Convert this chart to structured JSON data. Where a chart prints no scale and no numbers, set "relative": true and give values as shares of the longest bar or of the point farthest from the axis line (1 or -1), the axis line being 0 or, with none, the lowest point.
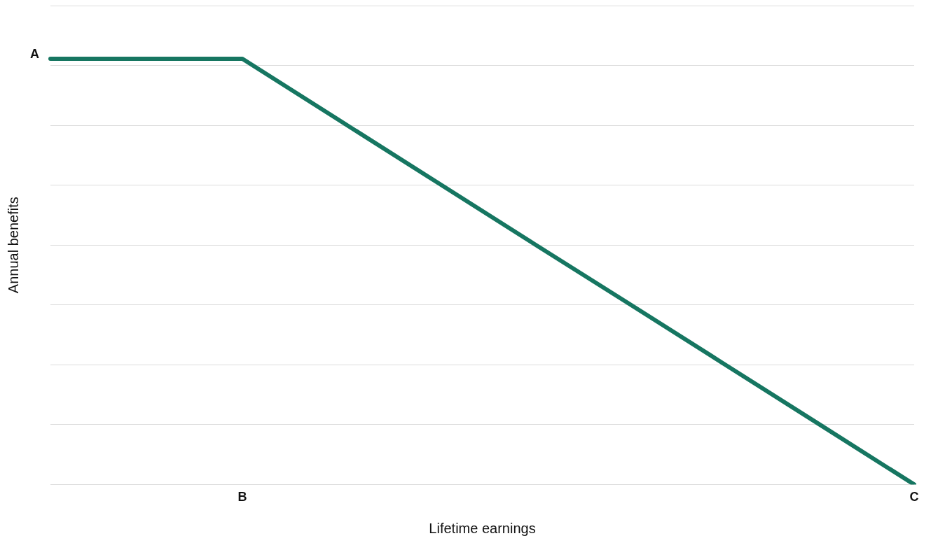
{
  "chart_data": {
    "type": "line",
    "relative": true,
    "xlabel": "Lifetime earnings",
    "ylabel": "Annual benefits",
    "categories": [
      null,
      null,
      "B",
      null,
      null,
      null,
      null,
      null,
      null,
      "C"
    ],
    "series": [
      {
        "color": "#167661",
        "values": [
          1,
          1,
          1,
          0.857,
          0.714,
          0.571,
          0.429,
          0.286,
          0.143,
          0
        ]
      }
    ],
    "annotations": [
      "A"
    ],
    "grid": "y",
    "legend": false,
    "marker": "none",
    "line_style": "solid",
    "tick_labels": "x"
  }
}
